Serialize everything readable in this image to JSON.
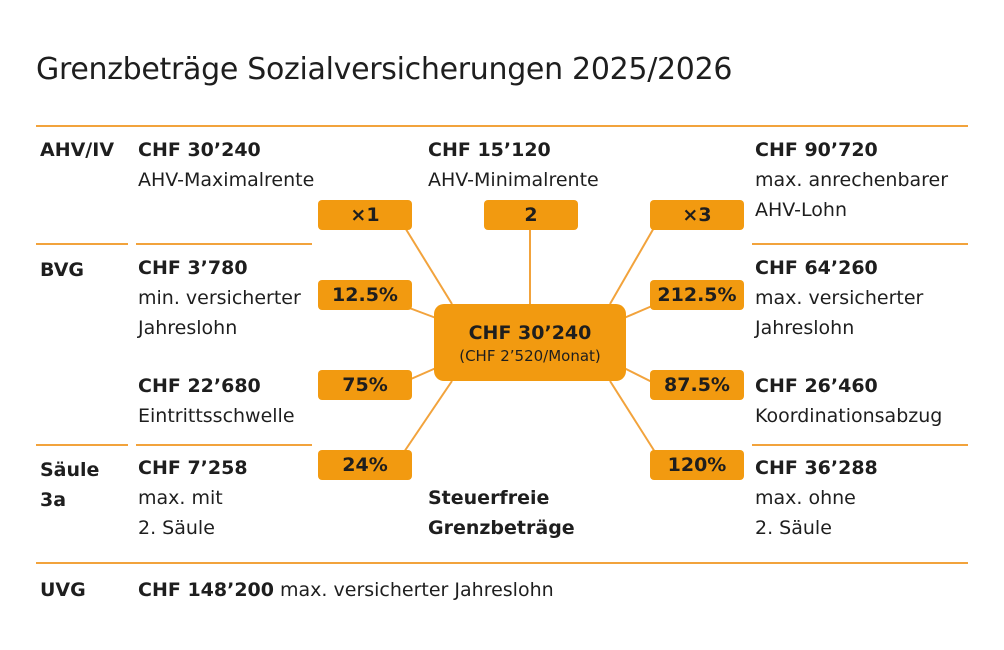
{
  "title": "Grenzbeträge Sozialversicherungen 2025/2026",
  "sections": {
    "ahv": "AHV/IV",
    "bvg": "BVG",
    "saeule_line1": "Säule",
    "saeule_line2": "3a",
    "uvg": "UVG"
  },
  "center": {
    "amount": "CHF 30’240",
    "monthly": "(CHF 2’520/Monat)"
  },
  "blocks": {
    "ahv_max": {
      "amount": "CHF 30’240",
      "lines": [
        "AHV-Maximalrente"
      ]
    },
    "ahv_min": {
      "amount": "CHF 15’120",
      "lines": [
        "AHV-Minimalrente"
      ]
    },
    "ahv_lohn": {
      "amount": "CHF 90’720",
      "lines": [
        "max. anrechenbarer",
        "AHV-Lohn"
      ]
    },
    "bvg_min": {
      "amount": "CHF 3’780",
      "lines": [
        "min. versicherter",
        "Jahreslohn"
      ]
    },
    "bvg_max": {
      "amount": "CHF 64’260",
      "lines": [
        "max. versicherter",
        "Jahreslohn"
      ]
    },
    "bvg_eintritt": {
      "amount": "CHF 22’680",
      "lines": [
        "Eintrittsschwelle"
      ]
    },
    "bvg_koord": {
      "amount": "CHF 26’460",
      "lines": [
        "Koordinationsabzug"
      ]
    },
    "s3a_mit": {
      "amount": "CHF 7’258",
      "lines": [
        "max. mit",
        "2. Säule"
      ]
    },
    "s3a_ohne": {
      "amount": "CHF 36’288",
      "lines": [
        "max. ohne",
        "2. Säule"
      ]
    }
  },
  "badges": {
    "x1": "×1",
    "two": "2",
    "x3": "×3",
    "p12_5": "12.5%",
    "p212_5": "212.5%",
    "p75": "75%",
    "p87_5": "87.5%",
    "p24": "24%",
    "p120": "120%"
  },
  "steuerfrei": [
    "Steuerfreie",
    "Grenzbeträge"
  ],
  "uvg_row": {
    "amount": "CHF 148’200",
    "text": "max. versicherter Jahreslohn"
  },
  "colors": {
    "accent": "#f29a10",
    "rule": "#f2a33c",
    "text": "#1e1e1e"
  }
}
